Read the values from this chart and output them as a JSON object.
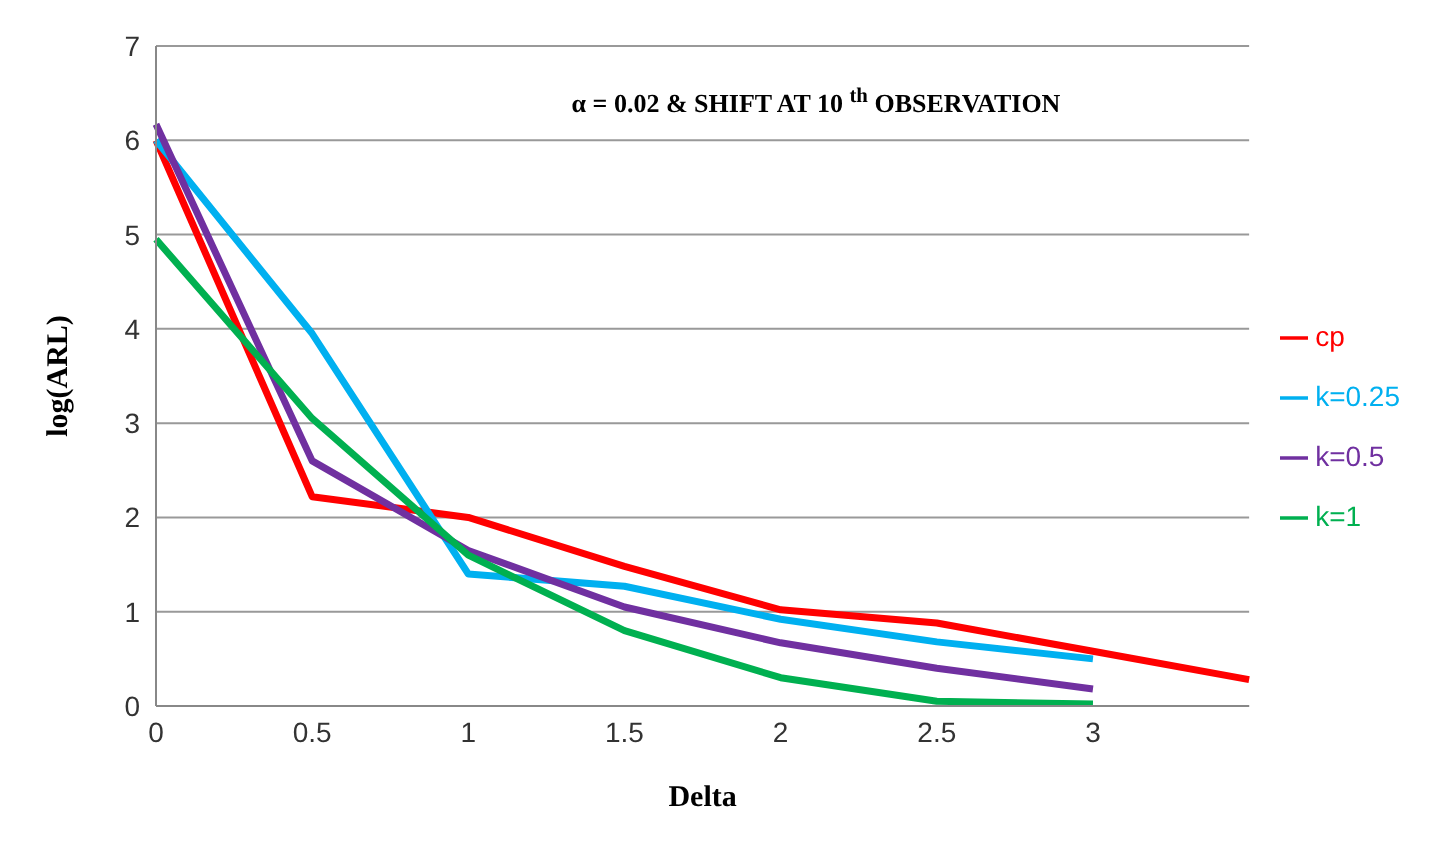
{
  "chart_data": {
    "type": "line",
    "title": "α = 0.02 & SHIFT AT 10 $^{th}$ OBSERVATION",
    "xlabel": "Delta",
    "ylabel": "log(ARL)",
    "categories": [
      "0",
      "0.5",
      "1",
      "1.5",
      "2",
      "2.5",
      "3",
      null
    ],
    "series": [
      {
        "name": "cp",
        "color": "#ff0000",
        "values": [
          6.0,
          2.22,
          2.0,
          1.48,
          1.02,
          0.88,
          0.58,
          0.28
        ]
      },
      {
        "name": "k=0.25",
        "color": "#00b0f0",
        "values": [
          6.0,
          3.95,
          1.4,
          1.27,
          0.92,
          0.68,
          0.5,
          null
        ]
      },
      {
        "name": "k=0.5",
        "color": "#7030a0",
        "values": [
          6.17,
          2.6,
          1.65,
          1.05,
          0.67,
          0.4,
          0.18,
          null
        ]
      },
      {
        "name": "k=1",
        "color": "#00b050",
        "values": [
          4.95,
          3.05,
          1.6,
          0.8,
          0.3,
          0.05,
          0.02,
          null
        ]
      }
    ],
    "ylim": [
      0,
      7
    ],
    "yticks": [
      0,
      1,
      2,
      3,
      4,
      5,
      6,
      7
    ],
    "grid": "y",
    "legend": "right",
    "marker": "none",
    "line_style": "solid"
  }
}
